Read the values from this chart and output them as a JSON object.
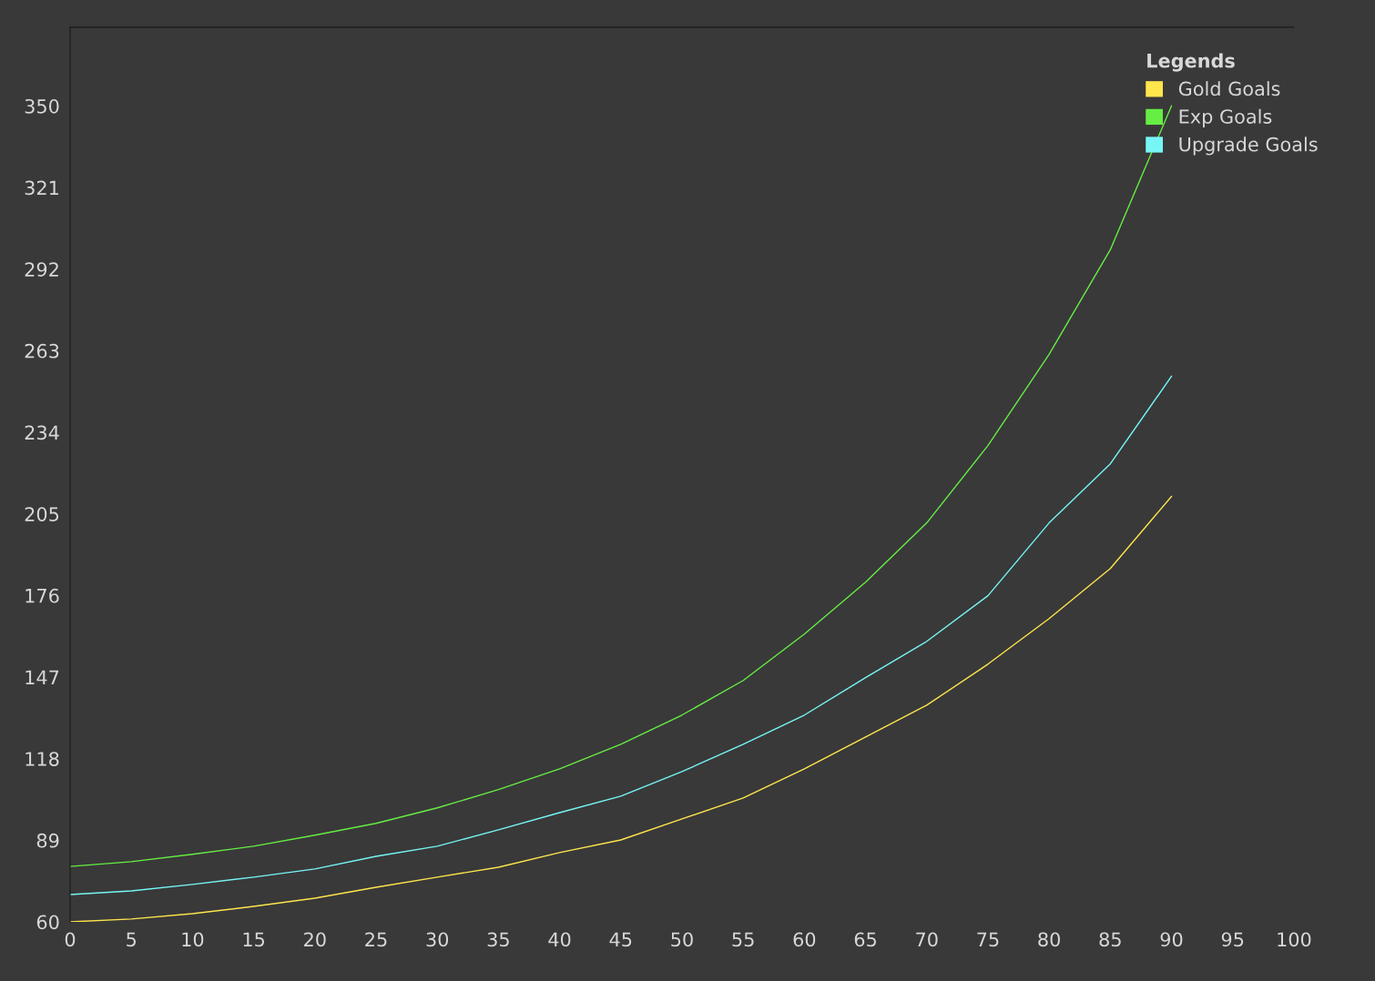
{
  "chart_data": {
    "type": "line",
    "legend_title": "Legends",
    "legend": "top right",
    "grid": false,
    "marker": "none",
    "line_style": "solid",
    "x": [
      0,
      5,
      10,
      15,
      20,
      25,
      30,
      35,
      40,
      45,
      50,
      55,
      60,
      65,
      70,
      75,
      80,
      85,
      90
    ],
    "xlim": [
      0,
      100
    ],
    "xticks": [
      0,
      5,
      10,
      15,
      20,
      25,
      30,
      35,
      40,
      45,
      50,
      55,
      60,
      65,
      70,
      75,
      80,
      85,
      90,
      95,
      100
    ],
    "ylim": [
      60,
      378
    ],
    "yticks": [
      60,
      89,
      118,
      147,
      176,
      205,
      234,
      263,
      292,
      321,
      350
    ],
    "series": [
      {
        "name": "Gold Goals",
        "color": "#ffe64d",
        "values": [
          60,
          61,
          62.9,
          65.5,
          68.4,
          72.3,
          75.9,
          79.4,
          84.6,
          89.1,
          96.6,
          104,
          114.4,
          125.7,
          137,
          151.6,
          167.8,
          185.6,
          211.2
        ]
      },
      {
        "name": "Exp Goals",
        "color": "#66ee44",
        "values": [
          79.7,
          81.4,
          84,
          86.9,
          90.8,
          95,
          100.5,
          107,
          114.4,
          123.1,
          133.5,
          145.8,
          162.3,
          180.7,
          201.8,
          229.3,
          261.7,
          298.9,
          350
        ]
      },
      {
        "name": "Upgrade Goals",
        "color": "#77f6f6",
        "values": [
          69.7,
          71,
          73.3,
          75.9,
          78.8,
          83.3,
          86.9,
          92.7,
          98.8,
          104.7,
          113.4,
          123.1,
          133.5,
          146.8,
          159.7,
          175.9,
          201.8,
          222.8,
          253.9
        ]
      }
    ]
  }
}
